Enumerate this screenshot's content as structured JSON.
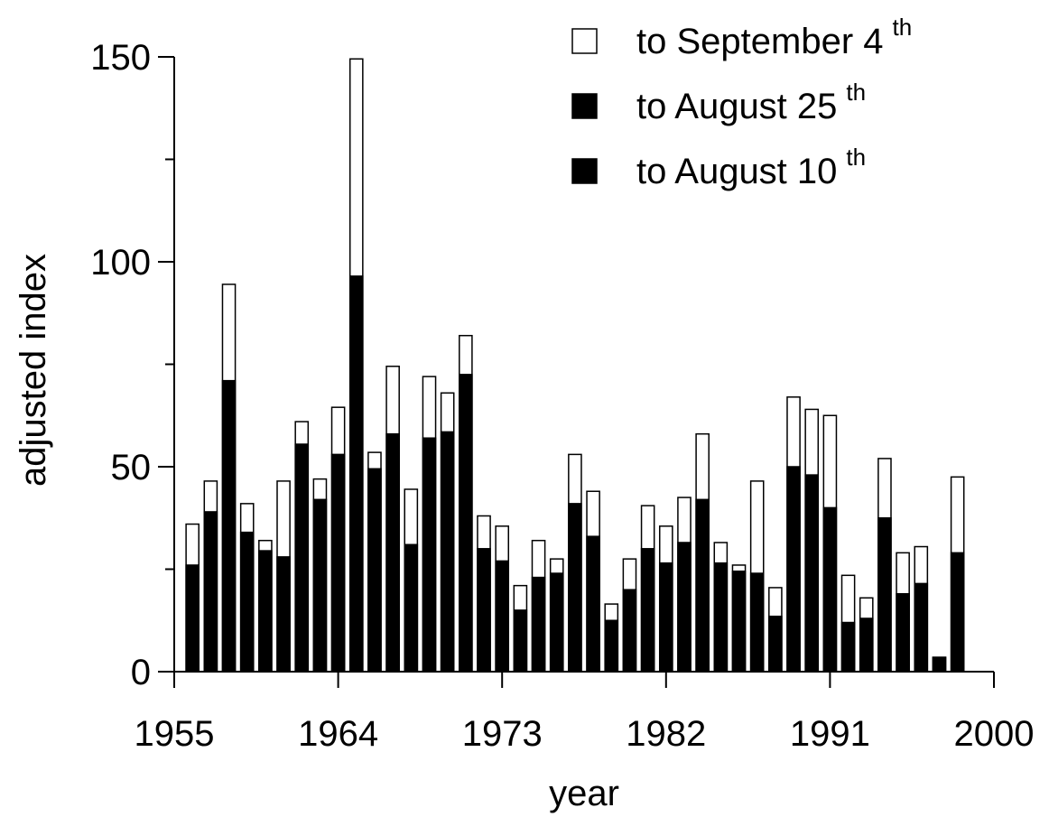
{
  "chart_data": {
    "type": "bar",
    "barmode": "overlay",
    "xlabel": "year",
    "ylabel": "adjusted index",
    "x": [
      1956,
      1957,
      1958,
      1959,
      1960,
      1961,
      1962,
      1963,
      1964,
      1965,
      1966,
      1967,
      1968,
      1969,
      1970,
      1971,
      1972,
      1973,
      1974,
      1975,
      1976,
      1977,
      1978,
      1979,
      1980,
      1981,
      1982,
      1983,
      1984,
      1985,
      1986,
      1987,
      1988,
      1989,
      1990,
      1991,
      1992,
      1993,
      1994,
      1995,
      1996,
      1997,
      1998
    ],
    "series": [
      {
        "name": "to September 4",
        "sup": "th",
        "color": "#ffffff",
        "values": [
          36,
          46.5,
          94.5,
          41,
          32,
          46.5,
          61,
          47,
          64.5,
          149.5,
          53.5,
          74.5,
          44.5,
          72,
          68,
          82,
          38,
          35.5,
          21,
          32,
          27.5,
          53,
          44,
          16.5,
          27.5,
          40.5,
          35.5,
          42.5,
          58,
          31.5,
          26,
          46.5,
          20.5,
          67,
          64,
          62.5,
          23.5,
          18,
          52,
          29,
          30.5,
          3.5,
          47.5
        ]
      },
      {
        "name": "to August 25",
        "sup": "th",
        "color": "#000000",
        "values": [
          26,
          39,
          71,
          34,
          29.5,
          28,
          55.5,
          42,
          53,
          96.5,
          49.5,
          58,
          31,
          57,
          58.5,
          72.5,
          30,
          27,
          15,
          23,
          24,
          41,
          33,
          12.5,
          20,
          30,
          26.5,
          31.5,
          42,
          26.5,
          24.5,
          24,
          13.5,
          50,
          48,
          40,
          12,
          13,
          37.5,
          19,
          21.5,
          3.5,
          29
        ]
      },
      {
        "name": "to August 10",
        "sup": "th",
        "color": "#000000",
        "values": [
          null,
          null,
          null,
          null,
          null,
          null,
          null,
          null,
          null,
          null,
          null,
          null,
          null,
          null,
          null,
          null,
          null,
          null,
          null,
          null,
          null,
          null,
          null,
          null,
          null,
          null,
          null,
          null,
          null,
          null,
          null,
          null,
          null,
          null,
          null,
          null,
          null,
          null,
          null,
          null,
          null,
          null,
          null
        ]
      }
    ],
    "xlim": [
      1955,
      2000
    ],
    "xticks": [
      1955,
      1964,
      1973,
      1982,
      1991,
      2000
    ],
    "ylim": [
      0,
      150
    ],
    "yticks": [
      0,
      50,
      100,
      150
    ],
    "yminorticks": [
      25,
      75,
      125
    ],
    "bar_width": 0.7,
    "legend": "top-right"
  }
}
